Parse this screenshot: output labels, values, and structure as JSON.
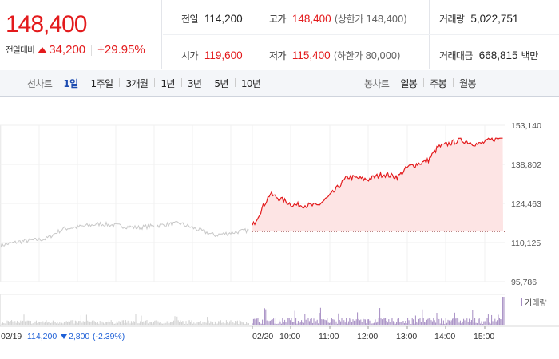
{
  "quote": {
    "price": "148,400",
    "change_label": "전일대비",
    "change": "34,200",
    "change_pct": "+29.95%",
    "prev_close_label": "전일",
    "prev_close": "114,200",
    "high_label": "고가",
    "high": "148,400",
    "high_note": "(상한가 148,400)",
    "volume_label": "거래량",
    "volume": "5,022,751",
    "open_label": "시가",
    "open": "119,600",
    "low_label": "저가",
    "low": "115,400",
    "low_note": "(하한가 80,000)",
    "turnover_label": "거래대금",
    "turnover": "668,815",
    "turnover_unit": "백만"
  },
  "tabs": {
    "line_title": "선차트",
    "line_items": [
      "1일",
      "1주일",
      "3개월",
      "1년",
      "3년",
      "5년",
      "10년"
    ],
    "candle_title": "봉차트",
    "candle_items": [
      "일봉",
      "주봉",
      "월봉"
    ]
  },
  "chart_data": {
    "type": "line",
    "ylim": [
      95786,
      153140
    ],
    "y_ticks": [
      "153,140",
      "138,802",
      "124,463",
      "110,125",
      "95,786"
    ],
    "prev_close": 114200,
    "today_range": [
      115400,
      148400
    ],
    "prev_day_range": [
      108000,
      119500
    ],
    "x_ticks": [
      "02/20",
      "10:00",
      "11:00",
      "12:00",
      "13:00",
      "14:00",
      "15:00"
    ],
    "prev_day_info": {
      "date": "02/19",
      "close": "114,200",
      "change": "2,800",
      "change_pct": "(-2.39%)"
    },
    "volume_legend": "거래량",
    "colors": {
      "today_line": "#e31a1c",
      "today_fill": "#fde4e4",
      "prev_line": "#c8c8c8",
      "volume_bar": "#a48bc2",
      "prev_volume_bar": "#d0d0d0",
      "down": "#1d5fd6"
    }
  }
}
